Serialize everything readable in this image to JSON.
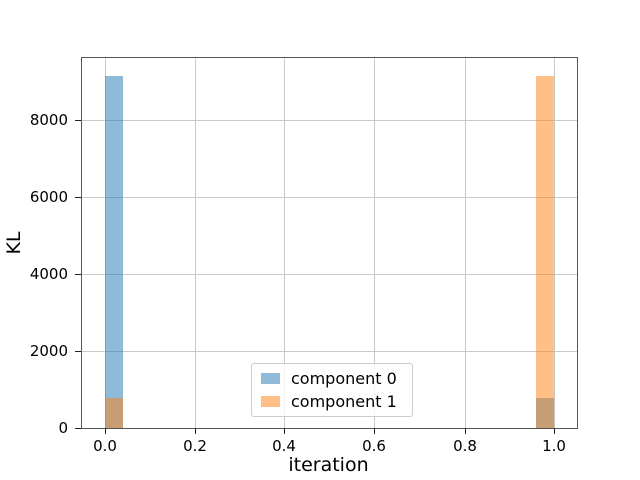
{
  "chart_data": {
    "type": "bar",
    "subtype": "histogram-overlaid",
    "title": "",
    "xlabel": "iteration",
    "ylabel": "KL",
    "xlim": [
      -0.05,
      1.05
    ],
    "ylim": [
      0,
      9608
    ],
    "x_ticks": [
      0.0,
      0.2,
      0.4,
      0.6,
      0.8,
      1.0
    ],
    "x_tick_labels": [
      "0.0",
      "0.2",
      "0.4",
      "0.6",
      "0.8",
      "1.0"
    ],
    "y_ticks": [
      0,
      2000,
      4000,
      6000,
      8000
    ],
    "y_tick_labels": [
      "0",
      "2000",
      "4000",
      "6000",
      "8000"
    ],
    "grid": true,
    "bar_alpha": 0.5,
    "series": [
      {
        "name": "component 0",
        "color": "#1f77b4",
        "bars": [
          {
            "x0": 0.0,
            "x1": 0.04,
            "value": 9150
          },
          {
            "x0": 0.96,
            "x1": 1.0,
            "value": 780
          }
        ]
      },
      {
        "name": "component 1",
        "color": "#ff7f0e",
        "bars": [
          {
            "x0": 0.0,
            "x1": 0.04,
            "value": 780
          },
          {
            "x0": 0.96,
            "x1": 1.0,
            "value": 9150
          }
        ]
      }
    ],
    "legend": {
      "position": "lower center",
      "entries": [
        "component 0",
        "component 1"
      ]
    }
  },
  "colors": {
    "spine": "#555555",
    "grid": "#c9c9c9",
    "blended_overlap": "#c79d73",
    "background": "#ffffff",
    "text": "#000000"
  }
}
